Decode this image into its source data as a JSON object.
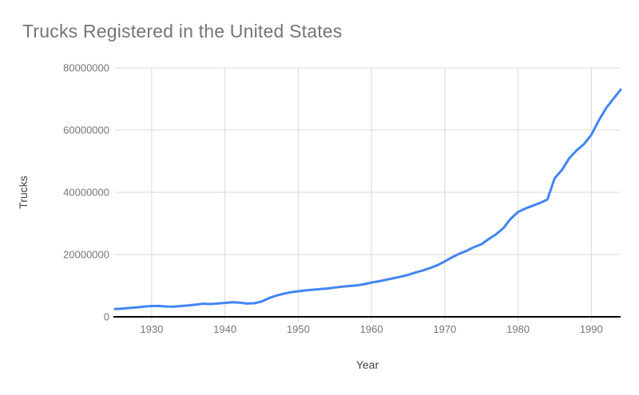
{
  "title": "Trucks Registered in the United States",
  "colors": {
    "background": "#ffffff",
    "title": "#757575",
    "axis_title": "#424242",
    "tick_label": "#757575",
    "gridline": "#d9d9d9",
    "baseline": "#000000",
    "line": "#4285f4"
  },
  "chart_data": {
    "type": "line",
    "title": "Trucks Registered in the United States",
    "xlabel": "Year",
    "ylabel": "Trucks",
    "xlim": [
      1925,
      1994
    ],
    "ylim": [
      0,
      80000000
    ],
    "xticks": [
      1930,
      1940,
      1950,
      1960,
      1970,
      1980,
      1990
    ],
    "yticks": [
      0,
      20000000,
      40000000,
      60000000,
      80000000
    ],
    "grid": true,
    "legend": "none",
    "x": [
      1925,
      1926,
      1927,
      1928,
      1929,
      1930,
      1931,
      1932,
      1933,
      1934,
      1935,
      1936,
      1937,
      1938,
      1939,
      1940,
      1941,
      1942,
      1943,
      1944,
      1945,
      1946,
      1947,
      1948,
      1949,
      1950,
      1951,
      1952,
      1953,
      1954,
      1955,
      1956,
      1957,
      1958,
      1959,
      1960,
      1961,
      1962,
      1963,
      1964,
      1965,
      1966,
      1967,
      1968,
      1969,
      1970,
      1971,
      1972,
      1973,
      1974,
      1975,
      1976,
      1977,
      1978,
      1979,
      1980,
      1981,
      1982,
      1983,
      1984,
      1985,
      1986,
      1987,
      1988,
      1989,
      1990,
      1991,
      1992,
      1993,
      1994
    ],
    "series": [
      {
        "name": "Trucks",
        "values": [
          2500000,
          2650000,
          2850000,
          3050000,
          3250000,
          3450000,
          3500000,
          3300000,
          3250000,
          3450000,
          3650000,
          3900000,
          4200000,
          4100000,
          4250000,
          4450000,
          4700000,
          4550000,
          4250000,
          4350000,
          4900000,
          6000000,
          6800000,
          7400000,
          7900000,
          8200000,
          8500000,
          8700000,
          8900000,
          9100000,
          9400000,
          9700000,
          9900000,
          10100000,
          10500000,
          11000000,
          11400000,
          11900000,
          12400000,
          12900000,
          13500000,
          14200000,
          14900000,
          15700000,
          16600000,
          17800000,
          19100000,
          20300000,
          21200000,
          22400000,
          23300000,
          25000000,
          26500000,
          28500000,
          31500000,
          33700000,
          34800000,
          35700000,
          36600000,
          37700000,
          44500000,
          47200000,
          51000000,
          53500000,
          55500000,
          58500000,
          63000000,
          67000000,
          70000000,
          73000000
        ]
      }
    ]
  }
}
